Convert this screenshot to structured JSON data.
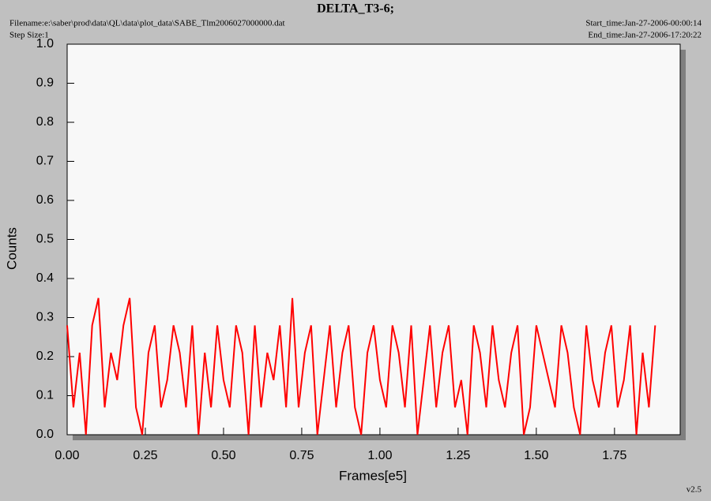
{
  "chart_data": {
    "type": "line",
    "title": "DELTA_T3-6;",
    "filename": "Filename:e:\\saber\\prod\\data\\QL\\data\\plot_data\\SABE_Tlm2006027000000.dat",
    "step_size": "Step Size:1",
    "start_time": "Start_time:Jan-27-2006-00:00:14",
    "end_time": "End_time:Jan-27-2006-17:20:22",
    "version": "v2.5",
    "x_label": "Frames[e5]",
    "y_label": "Counts",
    "xlim": [
      0,
      1.96
    ],
    "ylim": [
      0,
      1.0
    ],
    "xticks": [
      {
        "value": 0,
        "label": "0.00"
      },
      0.25,
      {
        "value": 0.5,
        "label": "0.50"
      },
      0.75,
      {
        "value": 1.0,
        "label": "1.00"
      },
      1.25,
      {
        "value": 1.5,
        "label": "1.50"
      },
      1.75
    ],
    "yticks": [
      {
        "value": 0,
        "label": "0.0"
      },
      0.1,
      0.2,
      0.3,
      0.4,
      0.5,
      0.6,
      0.7,
      0.8,
      0.9,
      {
        "value": 1.0,
        "label": "1.0"
      }
    ],
    "x": [
      0,
      0.02,
      0.04,
      0.06,
      0.08,
      0.1,
      0.12,
      0.14,
      0.16,
      0.18,
      0.2,
      0.22,
      0.24,
      0.26,
      0.28,
      0.3,
      0.32,
      0.34,
      0.36,
      0.38,
      0.4,
      0.42,
      0.44,
      0.46,
      0.48,
      0.5,
      0.52,
      0.54,
      0.56,
      0.58,
      0.6,
      0.62,
      0.64,
      0.66,
      0.68,
      0.7,
      0.72,
      0.74,
      0.76,
      0.78,
      0.8,
      0.82,
      0.84,
      0.86,
      0.88,
      0.9,
      0.92,
      0.94,
      0.96,
      0.98,
      1.0,
      1.02,
      1.04,
      1.06,
      1.08,
      1.1,
      1.12,
      1.14,
      1.16,
      1.18,
      1.2,
      1.22,
      1.24,
      1.26,
      1.28,
      1.3,
      1.32,
      1.34,
      1.36,
      1.38,
      1.4,
      1.42,
      1.44,
      1.46,
      1.48,
      1.5,
      1.52,
      1.54,
      1.56,
      1.58,
      1.6,
      1.62,
      1.64,
      1.66,
      1.68,
      1.7,
      1.72,
      1.74,
      1.76,
      1.78,
      1.8,
      1.82,
      1.84,
      1.86,
      1.88
    ],
    "series": [
      {
        "color": "#ff0000",
        "values": [
          0.28,
          0.07,
          0.21,
          0,
          0.28,
          0.35,
          0.07,
          0.21,
          0.14,
          0.28,
          0.35,
          0.07,
          0,
          0.21,
          0.28,
          0.07,
          0.14,
          0.28,
          0.21,
          0.07,
          0.28,
          0,
          0.21,
          0.07,
          0.28,
          0.14,
          0.07,
          0.28,
          0.21,
          0,
          0.28,
          0.07,
          0.21,
          0.14,
          0.28,
          0.07,
          0.35,
          0.07,
          0.21,
          0.28,
          0,
          0.14,
          0.28,
          0.07,
          0.21,
          0.28,
          0.07,
          0,
          0.21,
          0.28,
          0.14,
          0.07,
          0.28,
          0.21,
          0.07,
          0.28,
          0,
          0.14,
          0.28,
          0.07,
          0.21,
          0.28,
          0.07,
          0.14,
          0,
          0.28,
          0.21,
          0.07,
          0.28,
          0.14,
          0.07,
          0.21,
          0.28,
          0,
          0.07,
          0.28,
          0.21,
          0.14,
          0.07,
          0.28,
          0.21,
          0.07,
          0,
          0.28,
          0.14,
          0.07,
          0.21,
          0.28,
          0.07,
          0.14,
          0.28,
          0,
          0.21,
          0.07,
          0.28
        ]
      }
    ]
  }
}
